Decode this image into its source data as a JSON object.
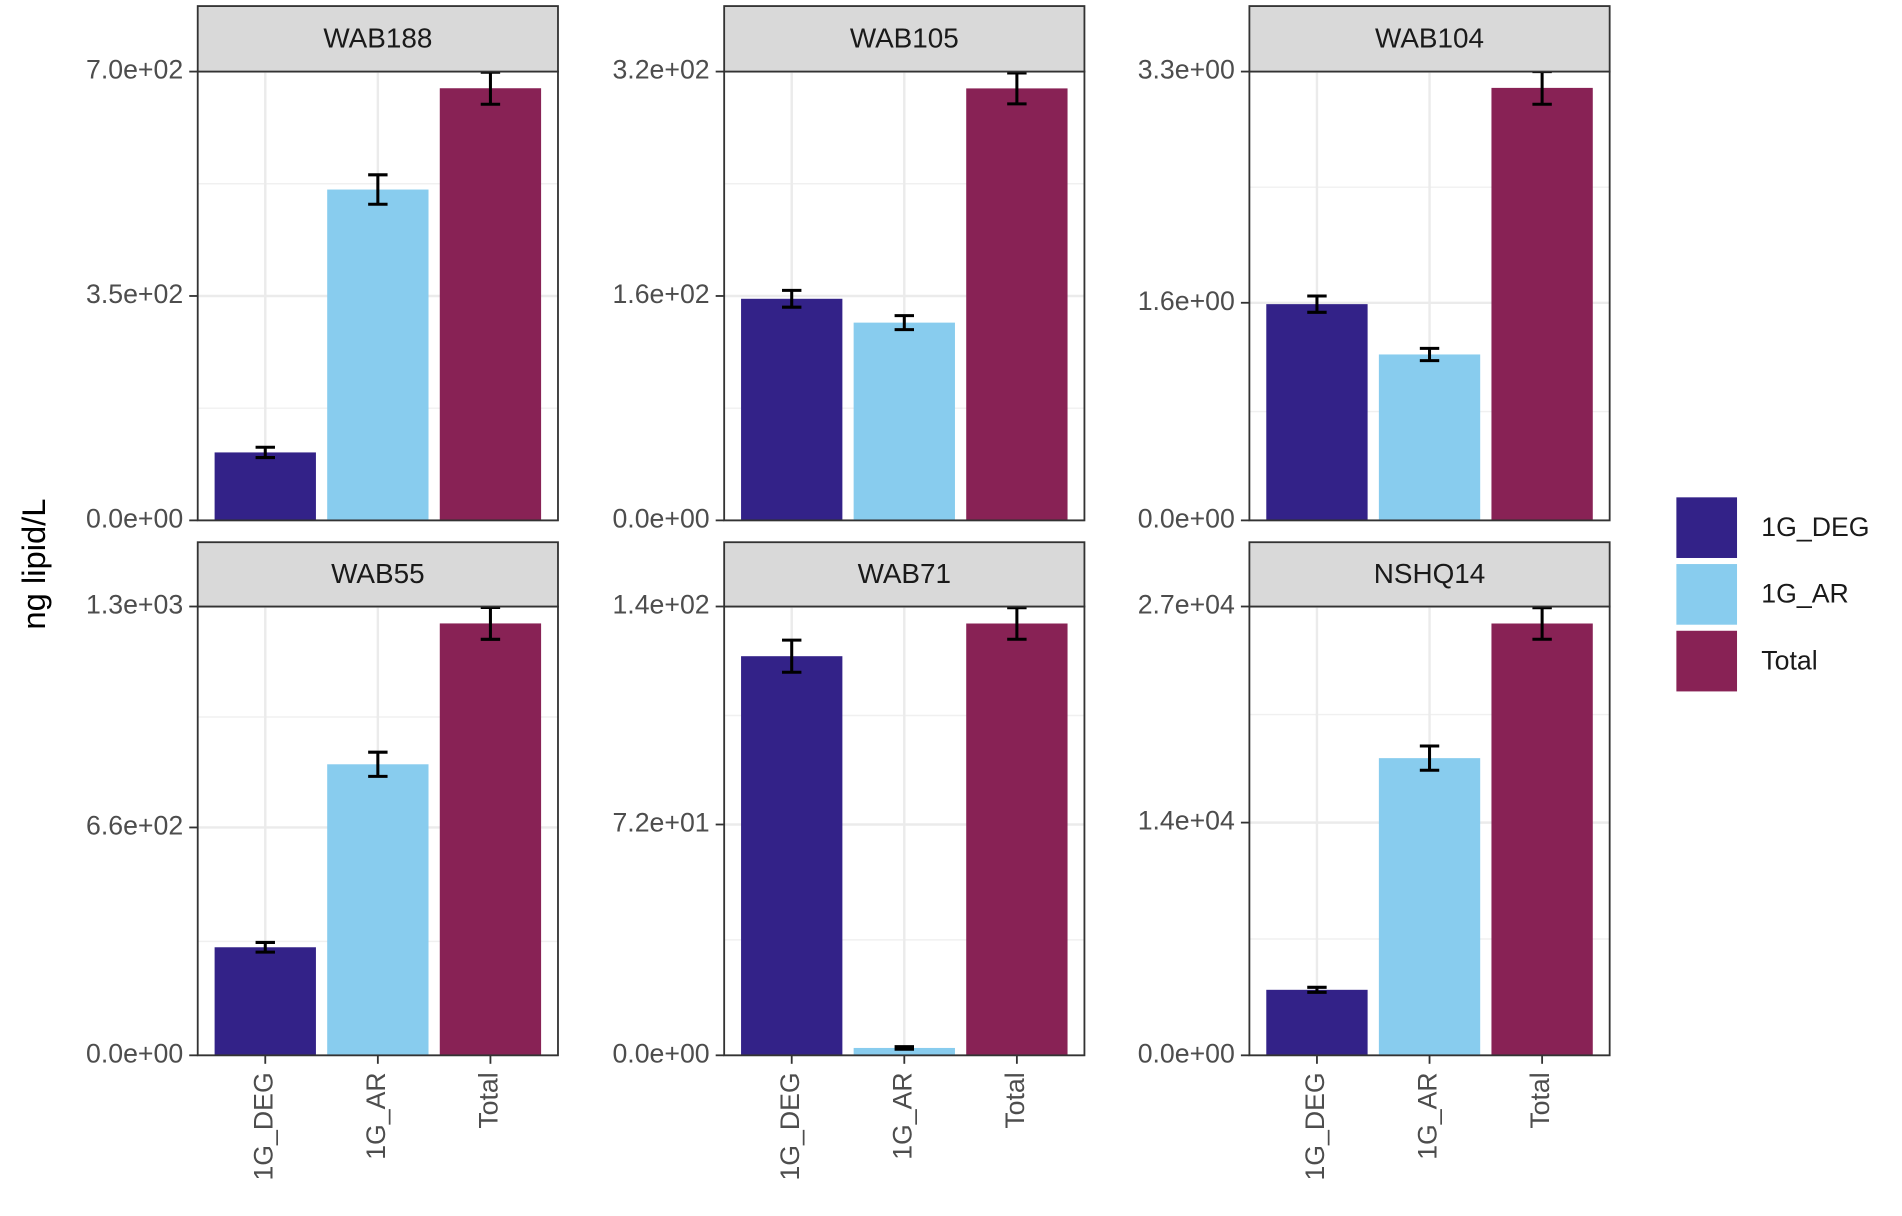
{
  "y_label": "ng lipid/L",
  "chart_data": [
    {
      "type": "bar",
      "title": "WAB188",
      "categories": [
        "1G_DEG",
        "1G_AR",
        "Total"
      ],
      "values": [
        106,
        516,
        674
      ],
      "errors": [
        8,
        23,
        25
      ],
      "colors": [
        "#332288",
        "#88ccee",
        "#882255"
      ],
      "ylim": [
        0,
        700
      ],
      "yticks": [
        {
          "value": 0,
          "label": "0.0e+00"
        },
        {
          "value": 350,
          "label": "3.5e+02"
        },
        {
          "value": 700,
          "label": "7.0e+02"
        }
      ],
      "grid": true
    },
    {
      "type": "bar",
      "title": "WAB105",
      "categories": [
        "1G_DEG",
        "1G_AR",
        "Total"
      ],
      "values": [
        158,
        141,
        308
      ],
      "errors": [
        6,
        5,
        11
      ],
      "colors": [
        "#332288",
        "#88ccee",
        "#882255"
      ],
      "ylim": [
        0,
        320
      ],
      "yticks": [
        {
          "value": 0,
          "label": "0.0e+00"
        },
        {
          "value": 160,
          "label": "1.6e+02"
        },
        {
          "value": 320,
          "label": "3.2e+02"
        }
      ],
      "grid": true
    },
    {
      "type": "bar",
      "title": "WAB104",
      "categories": [
        "1G_DEG",
        "1G_AR",
        "Total"
      ],
      "values": [
        1.59,
        1.22,
        3.18
      ],
      "errors": [
        0.06,
        0.045,
        0.12
      ],
      "colors": [
        "#332288",
        "#88ccee",
        "#882255"
      ],
      "ylim": [
        0,
        3.3
      ],
      "yticks": [
        {
          "value": 0,
          "label": "0.0e+00"
        },
        {
          "value": 1.6,
          "label": "1.6e+00"
        },
        {
          "value": 3.3,
          "label": "3.3e+00"
        }
      ],
      "grid": true
    },
    {
      "type": "bar",
      "title": "WAB55",
      "categories": [
        "1G_DEG",
        "1G_AR",
        "Total"
      ],
      "values": [
        313,
        843,
        1251
      ],
      "errors": [
        14,
        35,
        46
      ],
      "colors": [
        "#332288",
        "#88ccee",
        "#882255"
      ],
      "ylim": [
        0,
        1300
      ],
      "yticks": [
        {
          "value": 0,
          "label": "0.0e+00"
        },
        {
          "value": 660,
          "label": "6.6e+02"
        },
        {
          "value": 1300,
          "label": "1.3e+03"
        }
      ],
      "grid": true
    },
    {
      "type": "bar",
      "title": "WAB71",
      "categories": [
        "1G_DEG",
        "1G_AR",
        "Total"
      ],
      "values": [
        124.5,
        2.3,
        134.7
      ],
      "errors": [
        5,
        0.4,
        4.9
      ],
      "colors": [
        "#332288",
        "#88ccee",
        "#882255"
      ],
      "ylim": [
        0,
        140
      ],
      "yticks": [
        {
          "value": 0,
          "label": "0.0e+00"
        },
        {
          "value": 72,
          "label": "7.2e+01"
        },
        {
          "value": 140,
          "label": "1.4e+02"
        }
      ],
      "grid": true
    },
    {
      "type": "bar",
      "title": "NSHQ14",
      "categories": [
        "1G_DEG",
        "1G_AR",
        "Total"
      ],
      "values": [
        3941,
        17878,
        25978
      ],
      "errors": [
        150,
        730,
        950
      ],
      "colors": [
        "#332288",
        "#88ccee",
        "#882255"
      ],
      "ylim": [
        0,
        27000
      ],
      "yticks": [
        {
          "value": 0,
          "label": "0.0e+00"
        },
        {
          "value": 14000,
          "label": "1.4e+04"
        },
        {
          "value": 27000,
          "label": "2.7e+04"
        }
      ],
      "grid": true
    }
  ]
}
